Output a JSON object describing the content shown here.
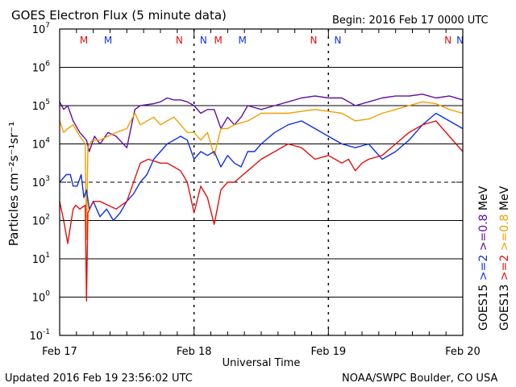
{
  "page": {
    "title": "GOES Electron Flux (5 minute data)",
    "begin": "Begin: 2016 Feb 17 0000 UTC",
    "updated": "Updated 2016 Feb 19 23:56:02 UTC",
    "credit": "NOAA/SWPC Boulder, CO USA"
  },
  "chart_data": {
    "type": "line",
    "title": "GOES Electron Flux (5 minute data)",
    "xlabel": "Universal Time",
    "ylabel": "Particles cm⁻²s⁻¹sr⁻¹",
    "yscale": "log",
    "ylim_exponent": [
      -1,
      7
    ],
    "yticks": [
      {
        "base": "10",
        "exp": "-1",
        "value": -1
      },
      {
        "base": "10",
        "exp": "0",
        "value": 0
      },
      {
        "base": "10",
        "exp": "1",
        "value": 1
      },
      {
        "base": "10",
        "exp": "2",
        "value": 2
      },
      {
        "base": "10",
        "exp": "3",
        "value": 3
      },
      {
        "base": "10",
        "exp": "4",
        "value": 4
      },
      {
        "base": "10",
        "exp": "5",
        "value": 5
      },
      {
        "base": "10",
        "exp": "6",
        "value": 6
      },
      {
        "base": "10",
        "exp": "7",
        "value": 7
      }
    ],
    "xlim_days": [
      0,
      3
    ],
    "xticks": [
      {
        "label": "Feb 17",
        "day": 0
      },
      {
        "label": "Feb 18",
        "day": 1
      },
      {
        "label": "Feb 19",
        "day": 2
      },
      {
        "label": "Feb 20",
        "day": 3
      }
    ],
    "grid": {
      "y_solid": [
        0,
        1,
        2,
        4,
        5,
        6
      ],
      "y_dashed": [
        3
      ],
      "x_dashed_days": [
        1,
        2
      ]
    },
    "markers": [
      {
        "label": "M",
        "day": 0.18,
        "color": "#e01010"
      },
      {
        "label": "M",
        "day": 0.36,
        "color": "#1030e0"
      },
      {
        "label": "N",
        "day": 0.89,
        "color": "#e01010"
      },
      {
        "label": "N",
        "day": 1.07,
        "color": "#1030e0"
      },
      {
        "label": "M",
        "day": 1.18,
        "color": "#e01010"
      },
      {
        "label": "M",
        "day": 1.36,
        "color": "#1030e0"
      },
      {
        "label": "N",
        "day": 1.89,
        "color": "#e01010"
      },
      {
        "label": "N",
        "day": 2.07,
        "color": "#1030e0"
      },
      {
        "label": "N",
        "day": 2.89,
        "color": "#e01010"
      },
      {
        "label": "N",
        "day": 2.98,
        "color": "#1030e0"
      }
    ],
    "legend": {
      "placement": "right",
      "columns": [
        {
          "sat": "GOES15",
          "items": [
            {
              "label": ">=2",
              "color": "#1030e0"
            },
            {
              "label": ">=0.8",
              "color": "#6010a0"
            }
          ]
        },
        {
          "sat": "GOES13",
          "items": [
            {
              "label": ">=2",
              "color": "#e01010"
            },
            {
              "label": ">=0.8",
              "color": "#f0a000"
            }
          ]
        }
      ],
      "unit": "MeV"
    },
    "series": [
      {
        "name": "GOES15 >=0.8 MeV",
        "color": "#6010a0",
        "x": [
          0,
          0.03,
          0.06,
          0.1,
          0.15,
          0.2,
          0.22,
          0.26,
          0.3,
          0.36,
          0.42,
          0.5,
          0.56,
          0.6,
          0.7,
          0.75,
          0.8,
          0.85,
          0.9,
          0.95,
          1.0,
          1.05,
          1.1,
          1.15,
          1.2,
          1.25,
          1.3,
          1.35,
          1.4,
          1.5,
          1.6,
          1.7,
          1.8,
          1.9,
          2.0,
          2.1,
          2.2,
          2.3,
          2.4,
          2.5,
          2.6,
          2.7,
          2.8,
          2.9,
          3.0
        ],
        "y": [
          5.1,
          4.9,
          5.0,
          4.6,
          4.3,
          4.1,
          3.8,
          4.2,
          4.0,
          4.3,
          4.2,
          3.9,
          4.9,
          5.0,
          5.05,
          5.1,
          5.2,
          5.15,
          5.15,
          5.1,
          5.0,
          4.8,
          4.9,
          4.9,
          4.4,
          4.7,
          4.5,
          4.7,
          5.0,
          4.9,
          5.0,
          5.1,
          5.2,
          5.25,
          5.2,
          5.2,
          5.0,
          5.1,
          5.2,
          5.25,
          5.25,
          5.3,
          5.2,
          5.25,
          5.15
        ]
      },
      {
        "name": "GOES13 >=0.8 MeV",
        "color": "#f0a000",
        "x": [
          0,
          0.03,
          0.06,
          0.1,
          0.15,
          0.19,
          0.2,
          0.21,
          0.24,
          0.3,
          0.36,
          0.42,
          0.5,
          0.56,
          0.6,
          0.7,
          0.75,
          0.8,
          0.85,
          0.9,
          0.95,
          1.0,
          1.05,
          1.1,
          1.15,
          1.2,
          1.25,
          1.3,
          1.4,
          1.5,
          1.6,
          1.7,
          1.8,
          1.9,
          2.0,
          2.1,
          2.2,
          2.3,
          2.4,
          2.5,
          2.6,
          2.7,
          2.8,
          2.9,
          3.0
        ],
        "y": [
          4.6,
          4.3,
          4.4,
          4.5,
          4.2,
          4.0,
          1.5,
          3.9,
          4.1,
          4.1,
          4.2,
          4.3,
          4.4,
          4.8,
          4.5,
          4.7,
          4.5,
          4.6,
          4.7,
          4.5,
          4.3,
          4.3,
          4.1,
          4.3,
          3.7,
          4.4,
          4.4,
          4.5,
          4.6,
          4.8,
          4.8,
          4.8,
          4.85,
          4.9,
          4.85,
          4.8,
          4.6,
          4.65,
          4.8,
          4.9,
          5.0,
          5.1,
          5.05,
          4.9,
          4.8
        ]
      },
      {
        "name": "GOES15 >=2 MeV",
        "color": "#1030e0",
        "x": [
          0,
          0.05,
          0.08,
          0.1,
          0.13,
          0.16,
          0.18,
          0.2,
          0.22,
          0.25,
          0.3,
          0.35,
          0.4,
          0.45,
          0.5,
          0.55,
          0.6,
          0.65,
          0.7,
          0.75,
          0.8,
          0.85,
          0.9,
          0.95,
          1.0,
          1.05,
          1.1,
          1.15,
          1.2,
          1.25,
          1.3,
          1.35,
          1.4,
          1.45,
          1.5,
          1.6,
          1.7,
          1.8,
          1.9,
          2.0,
          2.1,
          2.2,
          2.3,
          2.4,
          2.5,
          2.6,
          2.7,
          2.8,
          2.9,
          3.0
        ],
        "y": [
          3.0,
          3.2,
          3.2,
          2.9,
          2.9,
          3.2,
          2.6,
          2.8,
          2.3,
          2.5,
          2.1,
          2.3,
          2.0,
          2.2,
          2.5,
          2.7,
          3.0,
          3.2,
          3.6,
          3.8,
          4.0,
          4.1,
          4.2,
          4.1,
          3.6,
          3.8,
          3.7,
          3.8,
          3.4,
          3.7,
          3.5,
          3.4,
          3.8,
          3.8,
          4.0,
          4.3,
          4.5,
          4.6,
          4.4,
          4.2,
          4.0,
          3.9,
          4.0,
          3.6,
          3.8,
          4.1,
          4.5,
          4.8,
          4.6,
          4.4
        ]
      },
      {
        "name": "GOES13 >=2 MeV",
        "color": "#e01010",
        "x": [
          0,
          0.03,
          0.06,
          0.1,
          0.12,
          0.15,
          0.19,
          0.2,
          0.21,
          0.25,
          0.3,
          0.36,
          0.42,
          0.5,
          0.6,
          0.66,
          0.75,
          0.8,
          0.85,
          0.9,
          0.95,
          1.0,
          1.05,
          1.1,
          1.15,
          1.2,
          1.25,
          1.3,
          1.4,
          1.5,
          1.6,
          1.7,
          1.8,
          1.9,
          2.0,
          2.05,
          2.1,
          2.15,
          2.2,
          2.25,
          2.3,
          2.4,
          2.5,
          2.6,
          2.7,
          2.8,
          2.9,
          3.0
        ],
        "y": [
          2.5,
          2.0,
          1.4,
          2.3,
          2.4,
          2.3,
          2.4,
          -0.1,
          2.2,
          2.5,
          2.5,
          2.4,
          2.3,
          2.5,
          3.5,
          3.6,
          3.5,
          3.5,
          3.4,
          3.3,
          3.0,
          2.2,
          2.9,
          2.6,
          1.9,
          2.8,
          3.0,
          3.0,
          3.3,
          3.6,
          3.8,
          4.0,
          3.9,
          3.6,
          3.7,
          3.6,
          3.5,
          3.6,
          3.3,
          3.5,
          3.6,
          3.7,
          4.0,
          4.3,
          4.5,
          4.6,
          4.2,
          3.8
        ]
      }
    ]
  }
}
